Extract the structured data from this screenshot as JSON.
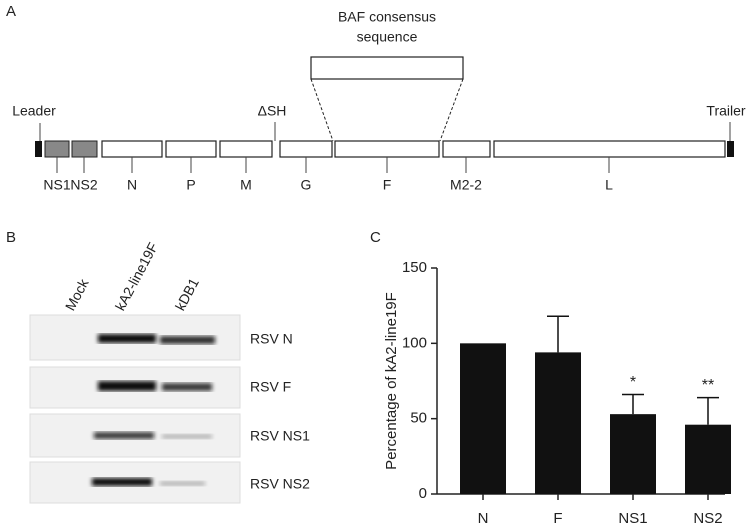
{
  "panel_labels": [
    "A",
    "B",
    "C"
  ],
  "genome": {
    "box_label": [
      "BAF consensus",
      "sequence"
    ],
    "leader": "Leader",
    "trailer": "Trailer",
    "deletion": "ΔSH",
    "genes": [
      "NS1",
      "NS2",
      "N",
      "P",
      "M",
      "G",
      "F",
      "M2-2",
      "L"
    ]
  },
  "blot": {
    "lanes": [
      "Mock",
      "kA2-line19F",
      "kDB1"
    ],
    "rows": [
      "RSV N",
      "RSV F",
      "RSV NS1",
      "RSV NS2"
    ]
  },
  "chart_data": {
    "type": "bar",
    "y_label": "Percentage of kA2-line19F",
    "categories": [
      "N",
      "F",
      "NS1",
      "NS2"
    ],
    "values": [
      100,
      94,
      53,
      46
    ],
    "errors": [
      0,
      24,
      13,
      18
    ],
    "annotations": [
      null,
      null,
      "*",
      "**"
    ],
    "color": "#111111",
    "ylim": [
      0,
      150
    ],
    "yticks": [
      0,
      50,
      100,
      150
    ]
  }
}
